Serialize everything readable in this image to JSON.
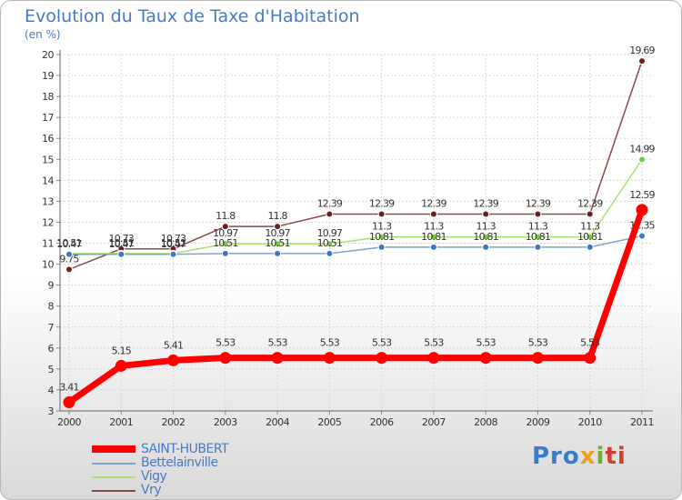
{
  "title": "Evolution du Taux de Taxe d'Habitation",
  "unit_label": "(en %)",
  "logo": {
    "text": "Proxiti",
    "parts": [
      "Pro",
      "x",
      "i",
      "ti"
    ]
  },
  "chart_data": {
    "type": "line",
    "title": "Evolution du Taux de Taxe d'Habitation",
    "ylabel": "(en %)",
    "xlabel": "",
    "x": [
      "2000",
      "2001",
      "2002",
      "2003",
      "2004",
      "2005",
      "2006",
      "2007",
      "2008",
      "2009",
      "2010",
      "2011"
    ],
    "ylim": [
      3,
      20
    ],
    "yticks": [
      "3",
      "4",
      "5",
      "6",
      "7",
      "8",
      "9",
      "10",
      "11",
      "12",
      "13",
      "14",
      "15",
      "16",
      "17",
      "18",
      "19",
      "20"
    ],
    "grid": true,
    "legend_position": "bottom-left",
    "series": [
      {
        "name": "SAINT-HUBERT",
        "color": "#ff0000",
        "dot_color": "#ff0000",
        "values": [
          3.41,
          5.15,
          5.41,
          5.53,
          5.53,
          5.53,
          5.53,
          5.53,
          5.53,
          5.53,
          5.53,
          12.59
        ],
        "labels": [
          "3.41",
          "5.15",
          "5.41",
          "5.53",
          "5.53",
          "5.53",
          "5.53",
          "5.53",
          "5.53",
          "5.53",
          "5.53",
          "12.59"
        ]
      },
      {
        "name": "Bettelainville",
        "color": "#7aa6d6",
        "dot_color": "#3a78c0",
        "values": [
          10.47,
          10.47,
          10.47,
          10.51,
          10.51,
          10.51,
          10.81,
          10.81,
          10.81,
          10.81,
          10.81,
          11.35
        ],
        "labels": [
          "10.47",
          "10.47",
          "10.47",
          "10.51",
          "10.51",
          "10.51",
          "10.81",
          "10.81",
          "10.81",
          "10.81",
          "10.81",
          "11.35"
        ]
      },
      {
        "name": "Vigy",
        "color": "#a8e070",
        "dot_color": "#7cc83c",
        "values": [
          10.51,
          10.51,
          10.51,
          10.97,
          10.97,
          10.97,
          11.3,
          11.3,
          11.3,
          11.3,
          11.3,
          14.99
        ],
        "labels": [
          "10.51",
          "10.51",
          "10.51",
          "10.97",
          "10.97",
          "10.97",
          "11.3",
          "11.3",
          "11.3",
          "11.3",
          "11.3",
          "14.99"
        ]
      },
      {
        "name": "Vry",
        "color": "#8a4a4a",
        "dot_color": "#6e1e1e",
        "values": [
          9.75,
          10.73,
          10.73,
          11.8,
          11.8,
          12.39,
          12.39,
          12.39,
          12.39,
          12.39,
          12.39,
          19.69
        ],
        "labels": [
          "9.75",
          "10.73",
          "10.73",
          "11.8",
          "11.8",
          "12.39",
          "12.39",
          "12.39",
          "12.39",
          "12.39",
          "12.39",
          "19.69"
        ]
      }
    ]
  }
}
